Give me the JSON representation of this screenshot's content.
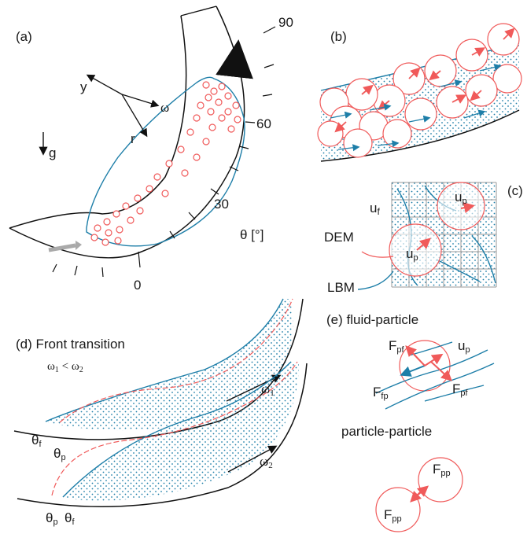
{
  "panel_a": {
    "label": "(a)",
    "angles": [
      "90",
      "60",
      "30",
      "0"
    ],
    "theta_label": "θ [°]",
    "axis_y": "y",
    "axis_r": "r",
    "omega": "ω",
    "gravity": "g"
  },
  "panel_b": {
    "label": "(b)"
  },
  "panel_c": {
    "label": "(c)",
    "u_f": "u",
    "u_f_sub": "f",
    "u_p": "u",
    "u_p_sub": "p",
    "dem": "DEM",
    "lbm": "LBM"
  },
  "panel_d": {
    "label": "(d) Front transition",
    "omega_rel_1": "ω",
    "omega_rel_1_sub": "1",
    "omega_rel_mid": " < ",
    "omega_rel_2": "ω",
    "omega_rel_2_sub": "2",
    "omega1": "ω",
    "omega1_sub": "1",
    "omega2": "ω",
    "omega2_sub": "2",
    "theta_f": "θ",
    "theta_f_sub": "f",
    "theta_p": "θ",
    "theta_p_sub": "p"
  },
  "panel_e": {
    "label": "(e) fluid-particle",
    "particle_particle": "particle-particle",
    "F": "F",
    "pf": "pf",
    "fp": "fp",
    "pp": "pp",
    "u": "u",
    "p": "p"
  },
  "colors": {
    "particle": "#f05a5a",
    "fluid": "#1d7ea8",
    "wall": "#111111",
    "grid": "#999999"
  }
}
